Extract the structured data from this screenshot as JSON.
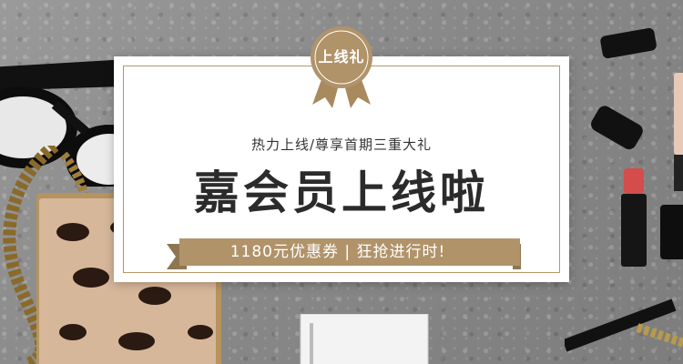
{
  "badge": {
    "label": "上线礼"
  },
  "banner": {
    "subtitle": "热力上线/尊享首期三重大礼",
    "title": "嘉会员上线啦",
    "ribbon_text": "1180元优惠券 | 狂抢进行时!"
  },
  "colors": {
    "gold": "#b1936a",
    "border": "#b79667",
    "text_dark": "#2b2b2b",
    "background": "#8a8a8a"
  }
}
